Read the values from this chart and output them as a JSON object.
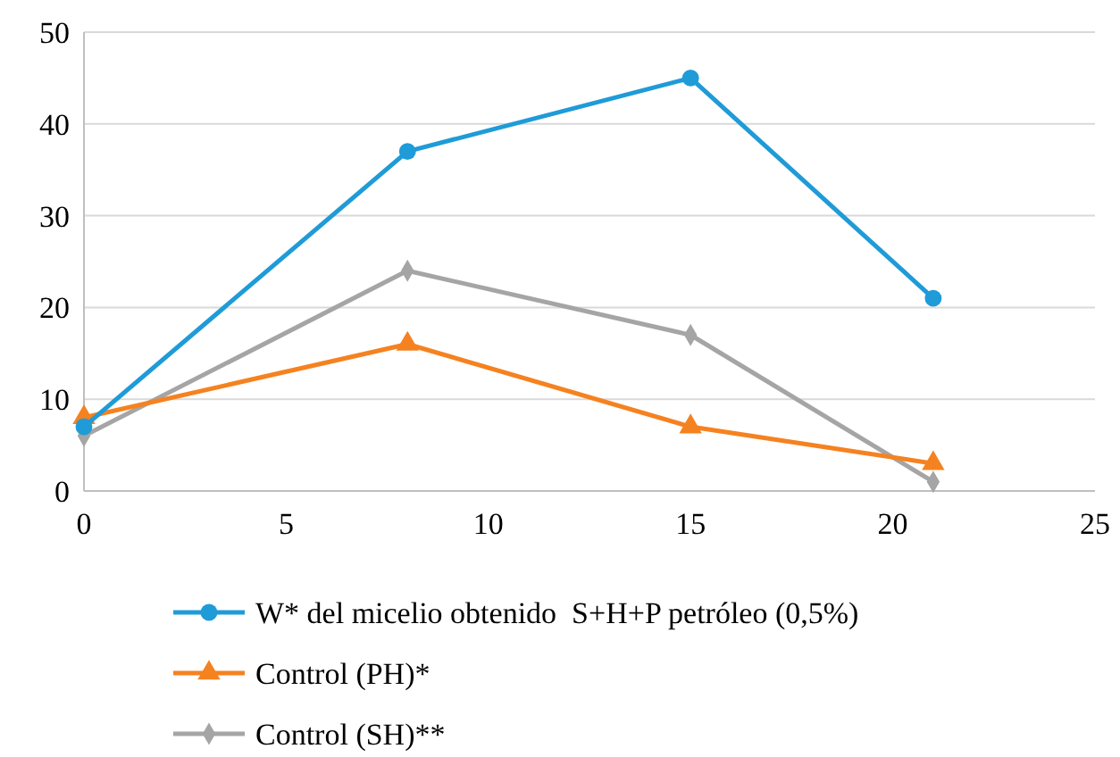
{
  "chart_data": {
    "type": "line",
    "x": [
      0,
      8,
      15,
      21
    ],
    "xlim": [
      0,
      25
    ],
    "xticks": [
      0,
      5,
      10,
      15,
      20,
      25
    ],
    "ylim": [
      0,
      50
    ],
    "yticks": [
      0,
      10,
      20,
      30,
      40,
      50
    ],
    "grid": "y",
    "legend": "bottom",
    "line_style": "solid",
    "series": [
      {
        "name": "W* del micelio obtenido  S+H+P petróleo (0,5%)",
        "color": "#1f9bd7",
        "marker": "circle",
        "values": [
          7,
          37,
          45,
          21
        ]
      },
      {
        "name": "Control (PH)*",
        "color": "#f58220",
        "marker": "triangle",
        "values": [
          8,
          16,
          7,
          3
        ]
      },
      {
        "name": "Control (SH)**",
        "color": "#a5a5a5",
        "marker": "diamond",
        "values": [
          6,
          24,
          17,
          1
        ]
      }
    ]
  }
}
